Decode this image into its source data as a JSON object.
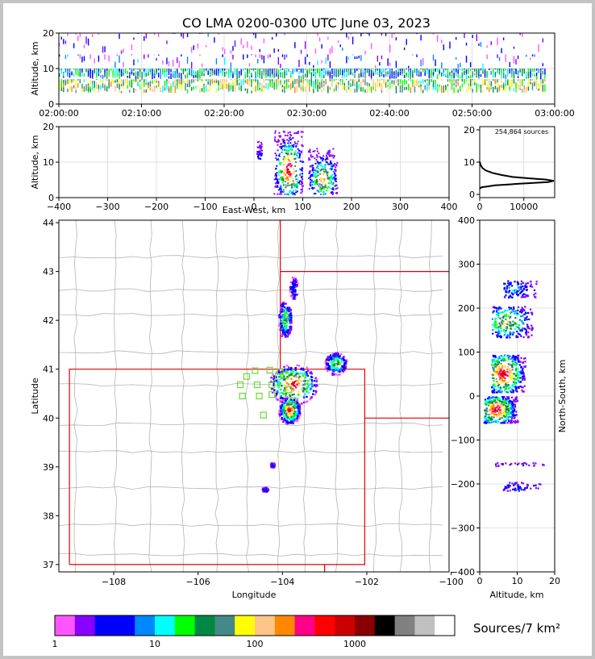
{
  "title": "CO LMA 0200-0300 UTC June 03, 2023",
  "colors": {
    "frame": "#c3c3c3",
    "state_border": "#e00000",
    "county": "#b4b4b4",
    "station": "#66dd33"
  },
  "chart_data": [
    {
      "panel": "time-height",
      "type": "scatter",
      "ylabel": "Altitude, km",
      "ylim": [
        0,
        20
      ],
      "yticks": [
        "0",
        "10",
        "20"
      ],
      "xticks": [
        "02:00:00",
        "02:10:00",
        "02:20:00",
        "02:30:00",
        "02:40:00",
        "02:50:00",
        "03:00:00"
      ],
      "xlim_minutes": [
        0,
        60
      ],
      "density_bands_km": [
        {
          "altitude": [
            3,
            7
          ],
          "level": 8
        },
        {
          "altitude": [
            7,
            10
          ],
          "level": 5
        },
        {
          "altitude": [
            10,
            14
          ],
          "level": 2
        },
        {
          "altitude": [
            14,
            20
          ],
          "level": 1
        }
      ],
      "activity_end_minute": 59
    },
    {
      "panel": "east-west-altitude",
      "type": "heatmap",
      "xlabel": "East-West, km",
      "ylabel": "Altitude, km",
      "xlim": [
        -400,
        400
      ],
      "ylim": [
        0,
        20
      ],
      "xticks": [
        "−400",
        "−300",
        "−200",
        "−100",
        "0",
        "100",
        "200",
        "300",
        "400"
      ],
      "yticks": [
        "0",
        "10",
        "20"
      ],
      "clusters": [
        {
          "x": [
            40,
            100
          ],
          "altitude": [
            1,
            19
          ],
          "peak": 14
        },
        {
          "x": [
            110,
            170
          ],
          "altitude": [
            1,
            14
          ],
          "peak": 11
        },
        {
          "x": [
            5,
            15
          ],
          "altitude": [
            11,
            16
          ],
          "peak": 2
        }
      ]
    },
    {
      "panel": "altitude-histogram",
      "type": "line",
      "annotation": "254,864 sources",
      "xlim": [
        0,
        17000
      ],
      "xticks": [
        "0",
        "10000"
      ],
      "ylim": [
        -1,
        21
      ],
      "yticks": [
        "0",
        "10",
        "20"
      ],
      "series": [
        {
          "altitude": [
            1.8,
            2.2,
            2.8,
            3.3,
            3.8,
            4.2,
            4.6,
            5.0,
            5.4,
            6.0,
            6.6,
            7.4,
            8.2,
            9.0,
            9.8,
            10.2
          ],
          "sources": [
            0,
            400,
            3500,
            9000,
            15500,
            16800,
            15000,
            11000,
            7500,
            5000,
            3000,
            1400,
            600,
            250,
            60,
            0
          ]
        }
      ]
    },
    {
      "panel": "plan-view",
      "type": "heatmap",
      "xlabel": "Longitude",
      "ylabel": "Latitude",
      "xlim": [
        -109.3,
        -100.05
      ],
      "ylim": [
        36.85,
        44.05
      ],
      "xticks": [
        "−108",
        "−106",
        "−104",
        "−102",
        "−100"
      ],
      "yticks": [
        "37",
        "38",
        "39",
        "40",
        "41",
        "42",
        "43",
        "44"
      ],
      "clusters": [
        {
          "lon": [
            -104.3,
            -103.2
          ],
          "lat": [
            40.3,
            41.1
          ],
          "peak": 14
        },
        {
          "lon": [
            -104.1,
            -103.6
          ],
          "lat": [
            39.9,
            40.45
          ],
          "peak": 13
        },
        {
          "lon": [
            -103.0,
            -102.5
          ],
          "lat": [
            40.9,
            41.35
          ],
          "peak": 8
        },
        {
          "lon": [
            -104.1,
            -103.8
          ],
          "lat": [
            41.65,
            42.4
          ],
          "peak": 8
        },
        {
          "lon": [
            -103.85,
            -103.65
          ],
          "lat": [
            42.45,
            42.9
          ],
          "peak": 3
        },
        {
          "lon": [
            -104.3,
            -104.2
          ],
          "lat": [
            39.0,
            39.1
          ],
          "peak": 2
        },
        {
          "lon": [
            -104.5,
            -104.35
          ],
          "lat": [
            38.5,
            38.6
          ],
          "peak": 2
        }
      ],
      "stations_lonlat": [
        [
          -104.65,
          40.97
        ],
        [
          -104.3,
          40.98
        ],
        [
          -104.05,
          40.95
        ],
        [
          -103.92,
          40.88
        ],
        [
          -104.85,
          40.85
        ],
        [
          -104.1,
          40.85
        ],
        [
          -105.0,
          40.68
        ],
        [
          -104.6,
          40.68
        ],
        [
          -104.25,
          40.68
        ],
        [
          -103.85,
          40.58
        ],
        [
          -104.25,
          40.48
        ],
        [
          -104.55,
          40.45
        ],
        [
          -104.95,
          40.45
        ],
        [
          -103.75,
          40.36
        ],
        [
          -104.45,
          40.06
        ]
      ]
    },
    {
      "panel": "altitude-north-south",
      "type": "heatmap",
      "xlabel": "Altitude, km",
      "ylabel": "North-South, km",
      "xlim": [
        0,
        20
      ],
      "ylim": [
        -400,
        400
      ],
      "xticks": [
        "0",
        "10",
        "20"
      ],
      "yticks": [
        "−400",
        "−300",
        "−200",
        "−100",
        "0",
        "100",
        "200",
        "300",
        "400"
      ],
      "clusters": [
        {
          "altitude": [
            3,
            12
          ],
          "y": [
            10,
            95
          ],
          "peak": 14
        },
        {
          "altitude": [
            1,
            10
          ],
          "y": [
            -60,
            0
          ],
          "peak": 14
        },
        {
          "altitude": [
            3,
            14
          ],
          "y": [
            135,
            205
          ],
          "peak": 9
        },
        {
          "altitude": [
            6,
            15
          ],
          "y": [
            225,
            265
          ],
          "peak": 4
        },
        {
          "altitude": [
            6,
            16
          ],
          "y": [
            -215,
            -195
          ],
          "peak": 2
        },
        {
          "altitude": [
            4,
            17
          ],
          "y": [
            -158,
            -150
          ],
          "peak": 1
        }
      ]
    }
  ],
  "colorbar": {
    "label": "Sources/7 km²",
    "ticks": [
      "1",
      "10",
      "100",
      "1000"
    ],
    "colors": [
      "#ff55ff",
      "#8800ff",
      "#0000ff",
      "#0000ff",
      "#0088ff",
      "#00ffff",
      "#00ff00",
      "#008844",
      "#448888",
      "#ffff00",
      "#ffc488",
      "#ff8800",
      "#ff0088",
      "#ff0000",
      "#cc0000",
      "#880000",
      "#000000",
      "#808080",
      "#c0c0c0",
      "#ffffff"
    ]
  }
}
